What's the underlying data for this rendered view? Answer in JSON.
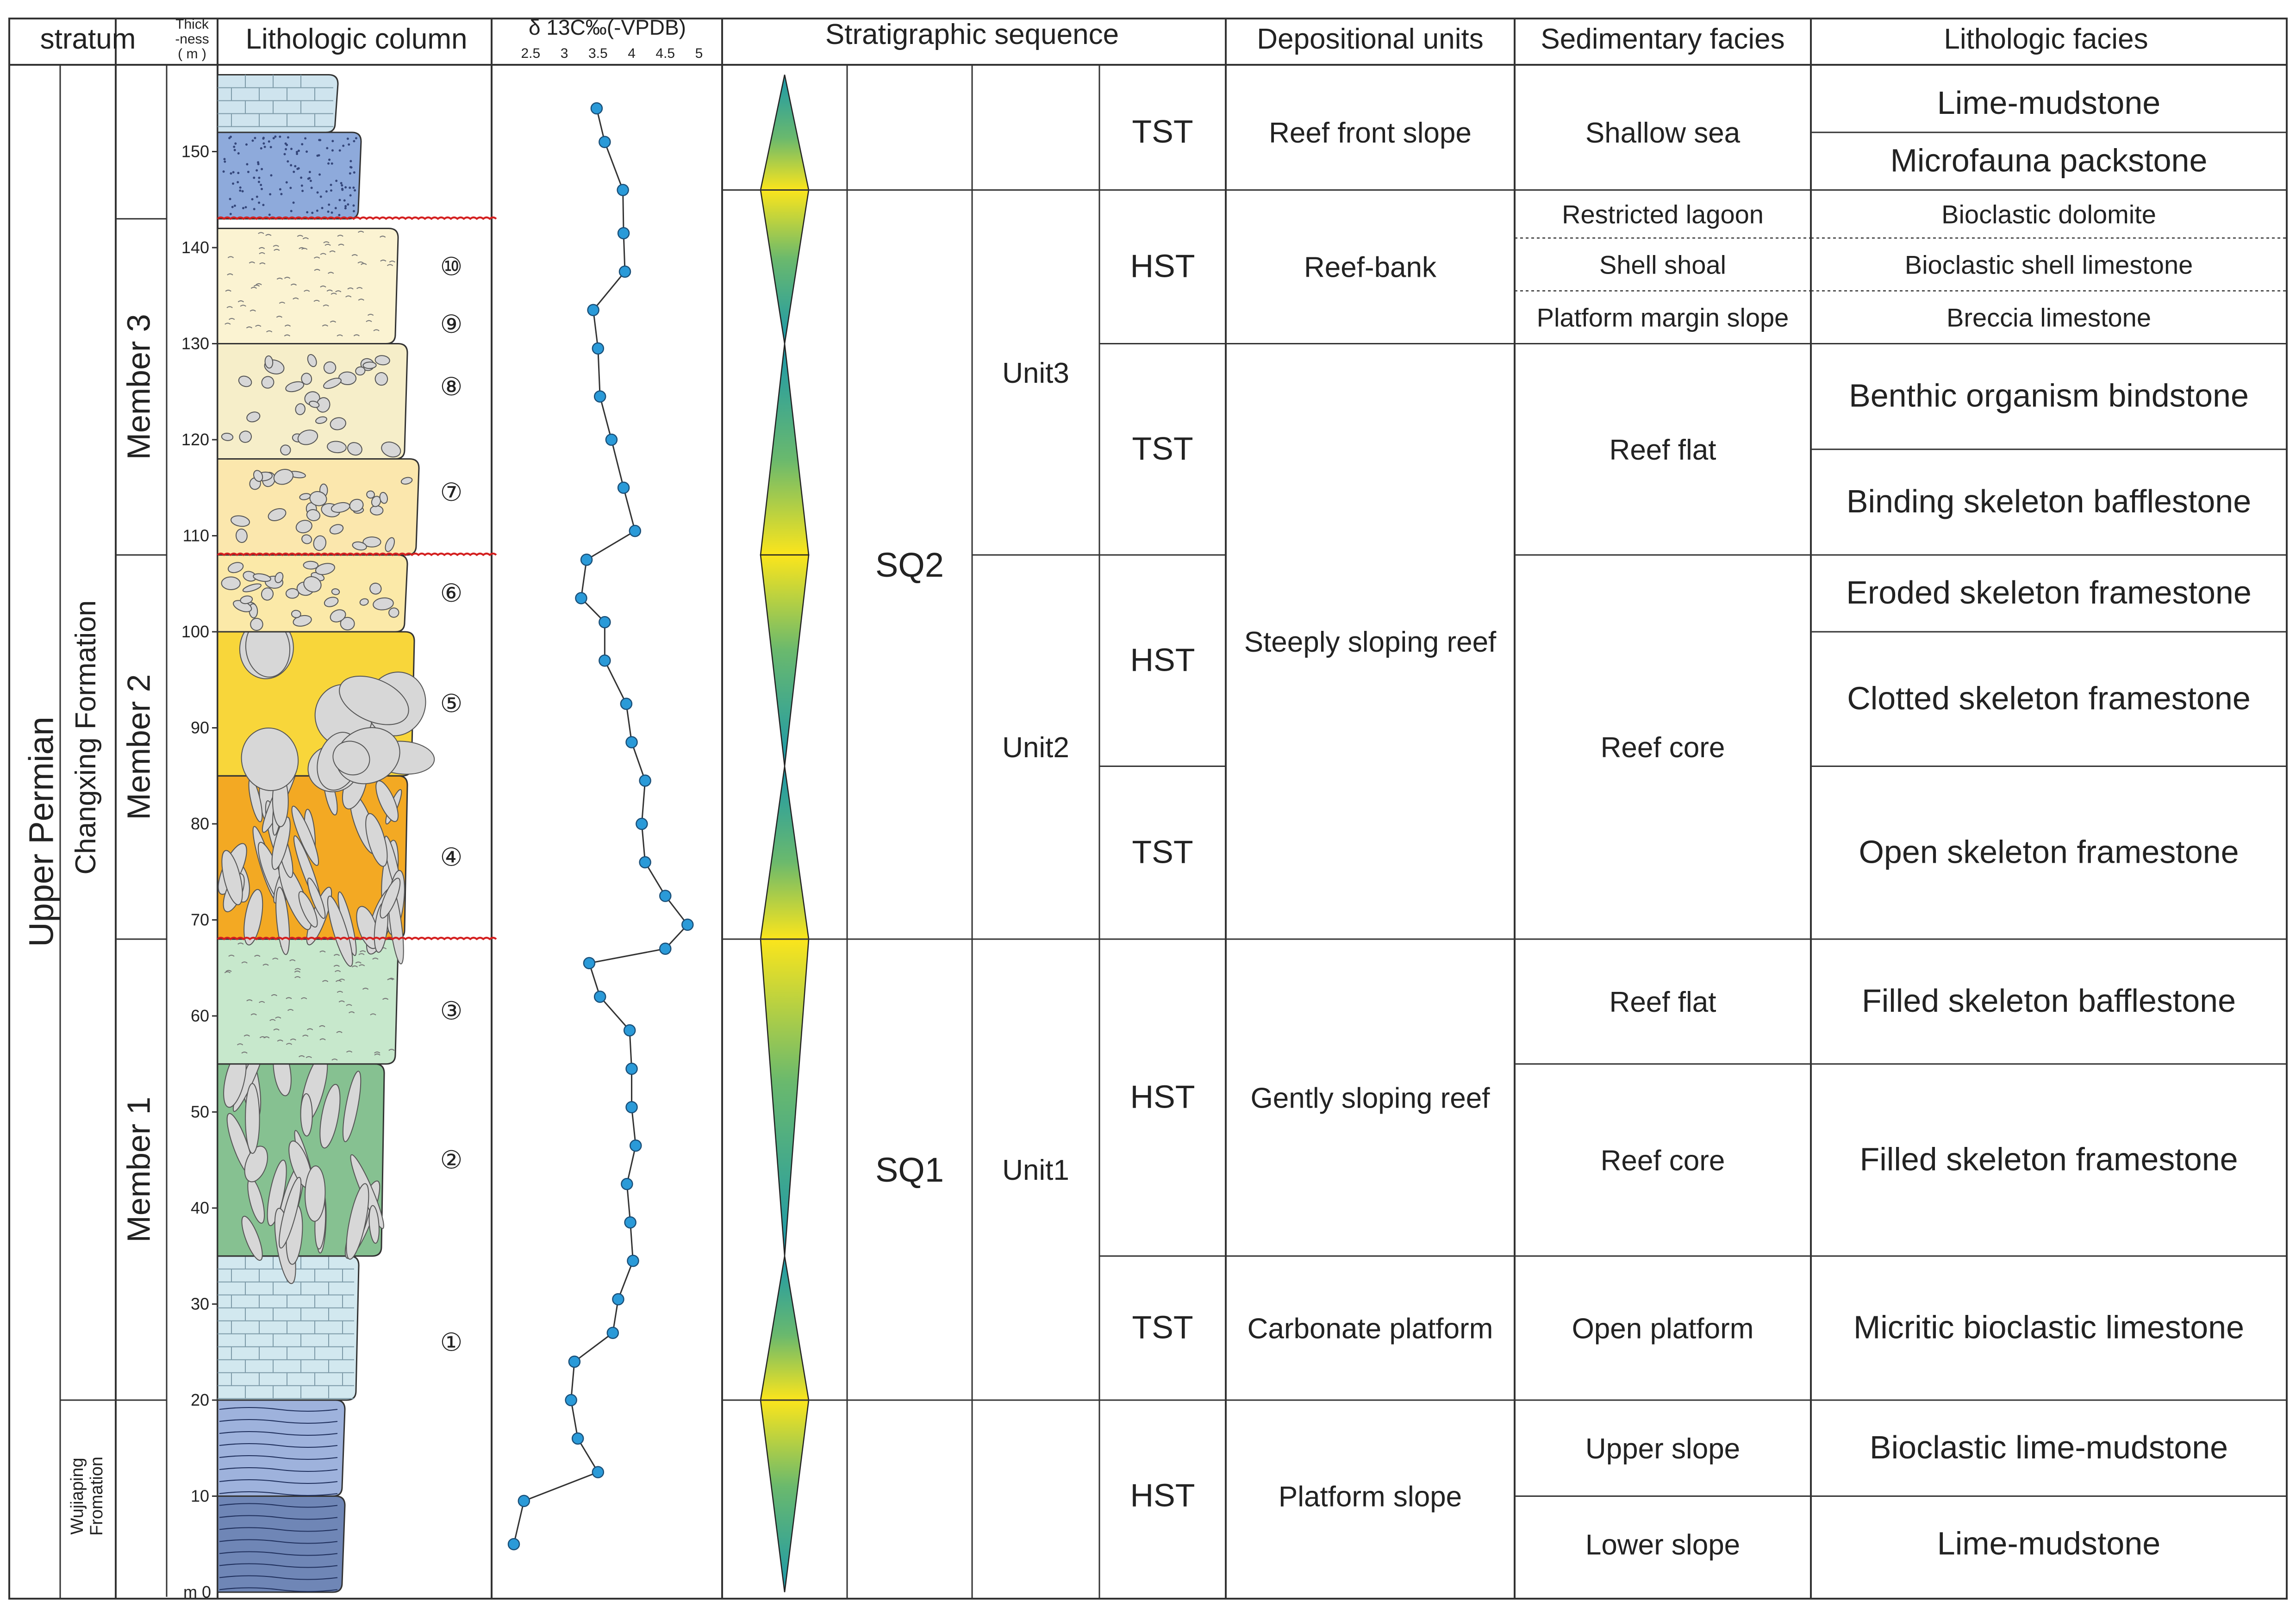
{
  "headers": {
    "stratum": "stratum",
    "thickness": "Thick\n-ness\n( m )",
    "lithologic_column": "Lithologic  column",
    "d13c": "δ 13C‰(-VPDB)",
    "stratigraphic_sequence": "Stratigraphic sequence",
    "depositional_units": "Depositional units",
    "sedimentary_facies": "Sedimentary facies",
    "lithologic_facies": "Lithologic facies"
  },
  "stratum": {
    "series": "Upper Permian",
    "formations": [
      {
        "name": "Changxing Formation",
        "from_m": 20,
        "to_m": 158
      },
      {
        "name": "Wujiaping\nFromation",
        "from_m": 0,
        "to_m": 20
      }
    ],
    "members": [
      {
        "name": "Member 3",
        "from_m": 108,
        "to_m": 143
      },
      {
        "name": "Member 2",
        "from_m": 68,
        "to_m": 108
      },
      {
        "name": "Member 1",
        "from_m": 20,
        "to_m": 68
      }
    ]
  },
  "thickness_axis": {
    "min_m": 0,
    "max_m": 158,
    "zero_label": "m 0",
    "ticks": [
      10,
      20,
      30,
      40,
      50,
      60,
      70,
      80,
      90,
      100,
      110,
      120,
      130,
      140,
      150
    ]
  },
  "lithologic_layers": [
    {
      "from_m": 0,
      "to_m": 10,
      "pattern": "laminated-dark-blue",
      "color": "#6f86b6"
    },
    {
      "from_m": 10,
      "to_m": 20,
      "pattern": "laminated-blue",
      "color": "#9eb2dc"
    },
    {
      "from_m": 20,
      "to_m": 35,
      "pattern": "limestone-brick",
      "color": "#d2e8ef"
    },
    {
      "from_m": 35,
      "to_m": 55,
      "pattern": "skeleton-framestone",
      "color": "#86c191"
    },
    {
      "from_m": 55,
      "to_m": 68,
      "pattern": "skeleton-bafflestone",
      "color": "#c7e8cc"
    },
    {
      "from_m": 68,
      "to_m": 85,
      "pattern": "open-framestone",
      "color": "#f3a923"
    },
    {
      "from_m": 85,
      "to_m": 100,
      "pattern": "clotted-framestone",
      "color": "#f8d63a"
    },
    {
      "from_m": 100,
      "to_m": 108,
      "pattern": "eroded-framestone",
      "color": "#fbe9a8"
    },
    {
      "from_m": 108,
      "to_m": 118,
      "pattern": "bafflestone",
      "color": "#fbe7ad"
    },
    {
      "from_m": 118,
      "to_m": 130,
      "pattern": "bindstone",
      "color": "#f6eec9"
    },
    {
      "from_m": 130,
      "to_m": 142,
      "pattern": "bioclastic-dolomite",
      "color": "#fbf3d2"
    },
    {
      "from_m": 143,
      "to_m": 152,
      "pattern": "packstone",
      "color": "#8eaadb"
    },
    {
      "from_m": 152,
      "to_m": 158,
      "pattern": "limestone-brick",
      "color": "#cfe4ee"
    }
  ],
  "layer_markers": [
    {
      "label": "①",
      "at_m": 26
    },
    {
      "label": "②",
      "at_m": 45
    },
    {
      "label": "③",
      "at_m": 60.5
    },
    {
      "label": "④",
      "at_m": 76.5
    },
    {
      "label": "⑤",
      "at_m": 92.5
    },
    {
      "label": "⑥",
      "at_m": 104
    },
    {
      "label": "⑦",
      "at_m": 114.5
    },
    {
      "label": "⑧",
      "at_m": 125.5
    },
    {
      "label": "⑨",
      "at_m": 132
    },
    {
      "label": "⑩",
      "at_m": 138
    }
  ],
  "unconformities_m": [
    68,
    108,
    143
  ],
  "chart_data": {
    "type": "line",
    "title": "δ 13C‰(-VPDB)",
    "x_ticks": [
      "2.5",
      "3",
      "3.5",
      "4",
      "4.5",
      "5"
    ],
    "xlim": [
      2.25,
      5.0
    ],
    "ylim": [
      0,
      158
    ],
    "points": [
      {
        "d13c": 2.25,
        "m": 5
      },
      {
        "d13c": 2.4,
        "m": 9.5
      },
      {
        "d13c": 3.5,
        "m": 12.5
      },
      {
        "d13c": 3.2,
        "m": 16
      },
      {
        "d13c": 3.1,
        "m": 20
      },
      {
        "d13c": 3.15,
        "m": 24
      },
      {
        "d13c": 3.72,
        "m": 27
      },
      {
        "d13c": 3.8,
        "m": 30.5
      },
      {
        "d13c": 4.02,
        "m": 34.5
      },
      {
        "d13c": 3.98,
        "m": 38.5
      },
      {
        "d13c": 3.93,
        "m": 42.5
      },
      {
        "d13c": 4.06,
        "m": 46.5
      },
      {
        "d13c": 4.0,
        "m": 50.5
      },
      {
        "d13c": 4.0,
        "m": 54.5
      },
      {
        "d13c": 3.97,
        "m": 58.5
      },
      {
        "d13c": 3.53,
        "m": 62
      },
      {
        "d13c": 3.37,
        "m": 65.5
      },
      {
        "d13c": 4.5,
        "m": 67
      },
      {
        "d13c": 4.83,
        "m": 69.5
      },
      {
        "d13c": 4.5,
        "m": 72.5
      },
      {
        "d13c": 4.2,
        "m": 76
      },
      {
        "d13c": 4.15,
        "m": 80
      },
      {
        "d13c": 4.2,
        "m": 84.5
      },
      {
        "d13c": 4.0,
        "m": 88.5
      },
      {
        "d13c": 3.92,
        "m": 92.5
      },
      {
        "d13c": 3.6,
        "m": 97
      },
      {
        "d13c": 3.6,
        "m": 101
      },
      {
        "d13c": 3.25,
        "m": 103.5
      },
      {
        "d13c": 3.33,
        "m": 107.5
      },
      {
        "d13c": 4.05,
        "m": 110.5
      },
      {
        "d13c": 3.88,
        "m": 115
      },
      {
        "d13c": 3.7,
        "m": 120
      },
      {
        "d13c": 3.53,
        "m": 124.5
      },
      {
        "d13c": 3.5,
        "m": 129.5
      },
      {
        "d13c": 3.43,
        "m": 133.5
      },
      {
        "d13c": 3.9,
        "m": 137.5
      },
      {
        "d13c": 3.88,
        "m": 141.5
      },
      {
        "d13c": 3.87,
        "m": 146
      },
      {
        "d13c": 3.6,
        "m": 151
      },
      {
        "d13c": 3.48,
        "m": 154.5
      }
    ]
  },
  "sequence_triangles": [
    {
      "top_m": 158,
      "peak_m": 146,
      "bottom_m": 130
    },
    {
      "top_m": 130,
      "peak_m": 108,
      "bottom_m": 86
    },
    {
      "top_m": 86,
      "peak_m": 68,
      "bottom_m": 35
    },
    {
      "top_m": 35,
      "peak_m": 20,
      "bottom_m": 0
    }
  ],
  "gradient_colors": {
    "peak": "#fbe51c",
    "mid": "#6ab96d",
    "tip": "#1a98ab"
  },
  "sequences": [
    {
      "label": "SQ2",
      "from_m": 68,
      "to_m": 146
    },
    {
      "label": "SQ1",
      "from_m": 20,
      "to_m": 68
    }
  ],
  "units": [
    {
      "label": "Unit3",
      "from_m": 108,
      "to_m": 146
    },
    {
      "label": "Unit2",
      "from_m": 68,
      "to_m": 108
    },
    {
      "label": "Unit1",
      "from_m": 20,
      "to_m": 68
    }
  ],
  "systems_tracts": [
    {
      "label": "TST",
      "from_m": 146,
      "to_m": 158
    },
    {
      "label": "HST",
      "from_m": 130,
      "to_m": 146
    },
    {
      "label": "TST",
      "from_m": 108,
      "to_m": 130
    },
    {
      "label": "HST",
      "from_m": 86,
      "to_m": 108
    },
    {
      "label": "TST",
      "from_m": 68,
      "to_m": 86
    },
    {
      "label": "HST",
      "from_m": 35,
      "to_m": 68
    },
    {
      "label": "TST",
      "from_m": 20,
      "to_m": 35
    },
    {
      "label": "HST",
      "from_m": 0,
      "to_m": 20
    }
  ],
  "depositional_units": [
    {
      "label": "Reef front slope",
      "from_m": 146,
      "to_m": 158
    },
    {
      "label": "Reef-bank",
      "from_m": 130,
      "to_m": 146
    },
    {
      "label": "Steeply sloping reef",
      "from_m": 68,
      "to_m": 130
    },
    {
      "label": "Gently sloping reef",
      "from_m": 35,
      "to_m": 68
    },
    {
      "label": "Carbonate platform",
      "from_m": 20,
      "to_m": 35
    },
    {
      "label": "Platform slope",
      "from_m": 0,
      "to_m": 20
    }
  ],
  "sedimentary_facies": [
    {
      "label": "Shallow sea",
      "from_m": 146,
      "to_m": 158
    },
    {
      "label": "Restricted lagoon",
      "from_m": 141,
      "to_m": 146,
      "dotted_bottom": true
    },
    {
      "label": "Shell shoal",
      "from_m": 135.5,
      "to_m": 141,
      "dotted_bottom": true
    },
    {
      "label": "Platform margin slope",
      "from_m": 130,
      "to_m": 135.5
    },
    {
      "label": "Reef flat",
      "from_m": 108,
      "to_m": 130
    },
    {
      "label": "Reef core",
      "from_m": 68,
      "to_m": 108
    },
    {
      "label": "Reef flat",
      "from_m": 55,
      "to_m": 68
    },
    {
      "label": "Reef core",
      "from_m": 35,
      "to_m": 55
    },
    {
      "label": "Open platform",
      "from_m": 20,
      "to_m": 35
    },
    {
      "label": "Upper slope",
      "from_m": 10,
      "to_m": 20
    },
    {
      "label": "Lower slope",
      "from_m": 0,
      "to_m": 10
    }
  ],
  "lithologic_facies": [
    {
      "label": "Lime-mudstone",
      "from_m": 152,
      "to_m": 158
    },
    {
      "label": "Microfauna packstone",
      "from_m": 146,
      "to_m": 152
    },
    {
      "label": "Bioclastic dolomite",
      "from_m": 141,
      "to_m": 146,
      "dotted_bottom": true
    },
    {
      "label": "Bioclastic shell limestone",
      "from_m": 135.5,
      "to_m": 141,
      "dotted_bottom": true
    },
    {
      "label": "Breccia limestone",
      "from_m": 130,
      "to_m": 135.5
    },
    {
      "label": "Benthic organism bindstone",
      "from_m": 119,
      "to_m": 130
    },
    {
      "label": "Binding skeleton bafflestone",
      "from_m": 108,
      "to_m": 119
    },
    {
      "label": "Eroded skeleton framestone",
      "from_m": 100,
      "to_m": 108
    },
    {
      "label": "Clotted skeleton framestone",
      "from_m": 86,
      "to_m": 100
    },
    {
      "label": "Open skeleton framestone",
      "from_m": 68,
      "to_m": 86
    },
    {
      "label": "Filled skeleton bafflestone",
      "from_m": 55,
      "to_m": 68
    },
    {
      "label": "Filled skeleton framestone",
      "from_m": 35,
      "to_m": 55
    },
    {
      "label": "Micritic bioclastic limestone",
      "from_m": 20,
      "to_m": 35
    },
    {
      "label": "Bioclastic lime-mudstone",
      "from_m": 10,
      "to_m": 20
    },
    {
      "label": "Lime-mudstone",
      "from_m": 0,
      "to_m": 10
    }
  ]
}
